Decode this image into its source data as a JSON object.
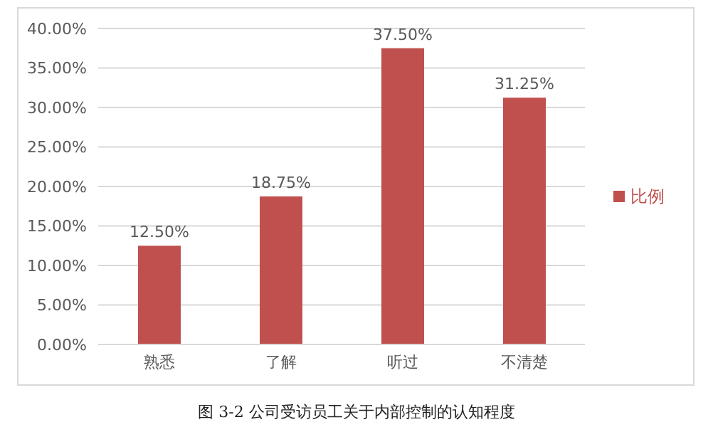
{
  "chart_data": {
    "type": "bar",
    "title": "图 3-2 公司受访员工关于内部控制的认知程度",
    "categories": [
      "熟悉",
      "了解",
      "听过",
      "不清楚"
    ],
    "series": [
      {
        "name": "比例",
        "color": "#c0504d",
        "values": [
          12.5,
          18.75,
          37.5,
          31.25
        ],
        "value_labels": [
          "12.50%",
          "18.75%",
          "37.50%",
          "31.25%"
        ]
      }
    ],
    "ylim": [
      0,
      40
    ],
    "yticks": [
      {
        "value": 0,
        "label": "0.00%"
      },
      {
        "value": 5,
        "label": "5.00%"
      },
      {
        "value": 10,
        "label": "10.00%"
      },
      {
        "value": 15,
        "label": "15.00%"
      },
      {
        "value": 20,
        "label": "20.00%"
      },
      {
        "value": 25,
        "label": "25.00%"
      },
      {
        "value": 30,
        "label": "30.00%"
      },
      {
        "value": 35,
        "label": "35.00%"
      },
      {
        "value": 40,
        "label": "40.00%"
      }
    ],
    "grid": "y",
    "legend": "right"
  }
}
